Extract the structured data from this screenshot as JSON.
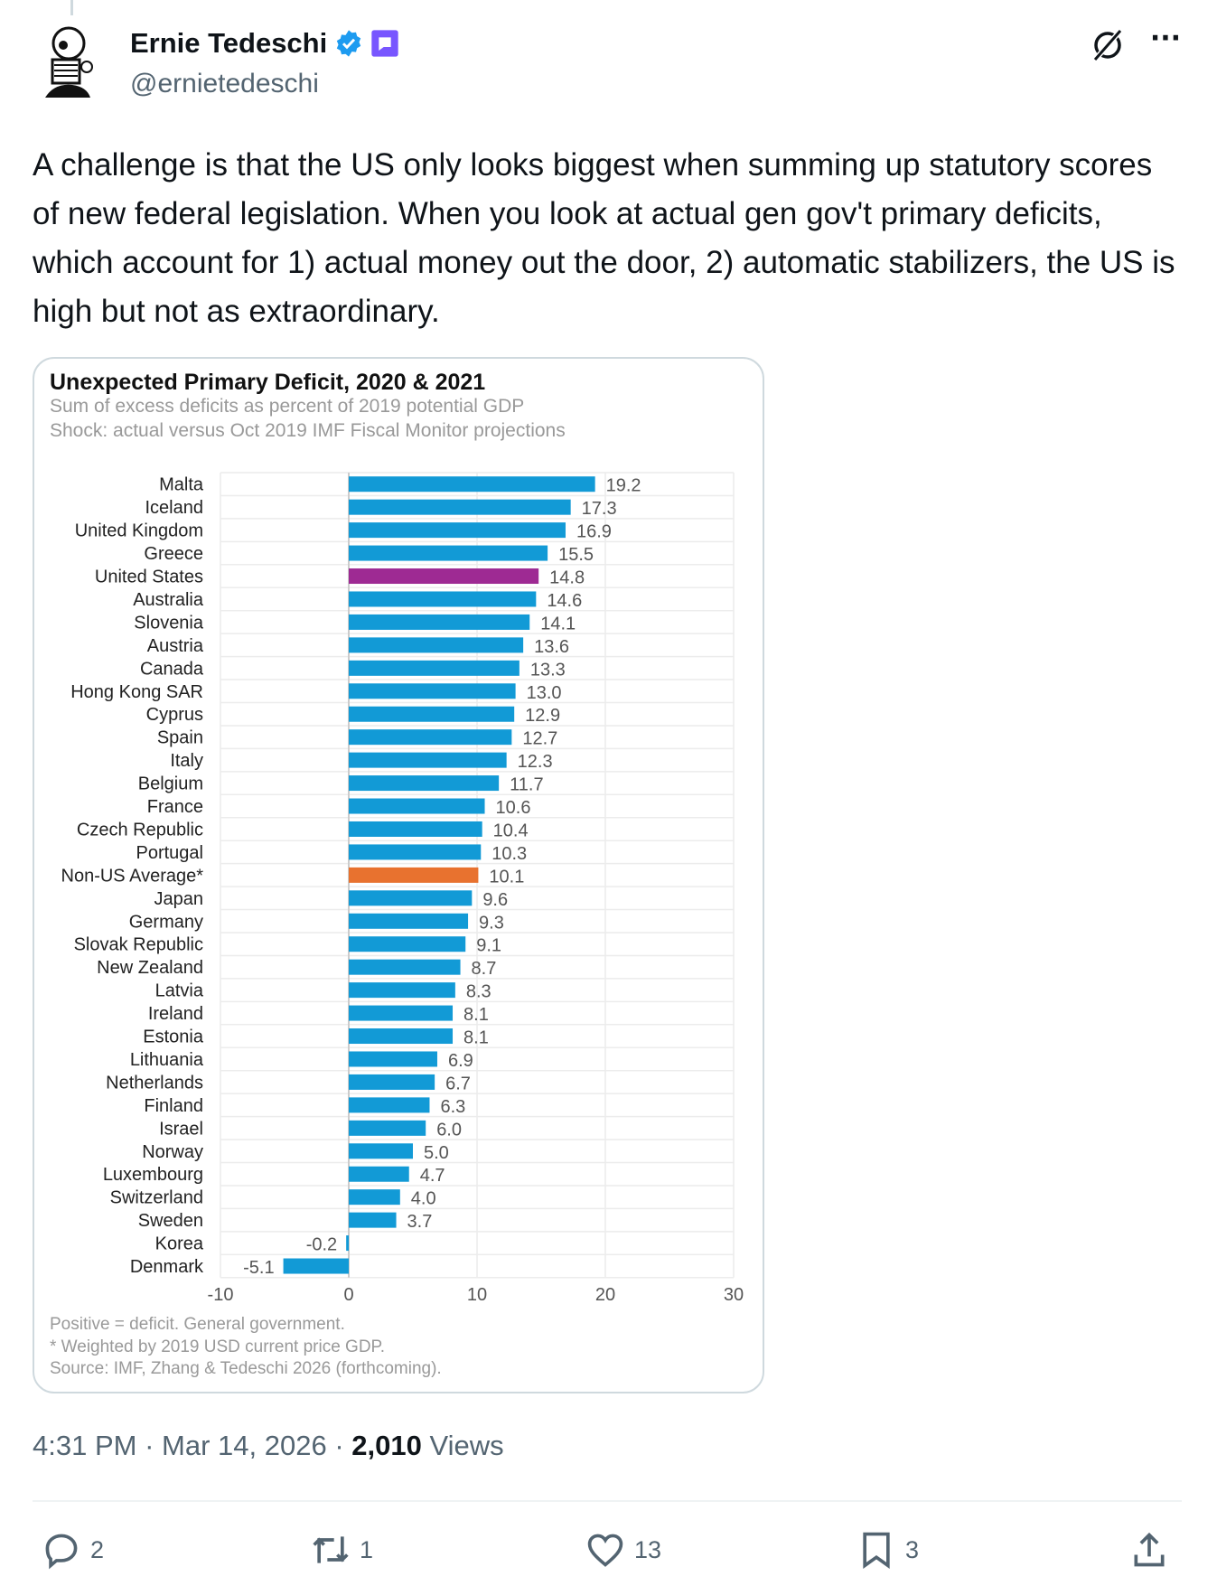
{
  "author": {
    "name": "Ernie Tedeschi",
    "handle": "@ernietedeschi"
  },
  "tweet_text": "A challenge is that the US only looks biggest when summing up statutory scores of new federal legislation. When you look at actual gen gov't primary deficits, which account for 1) actual money out the door, 2) automatic stabilizers, the US is high but not as extraordinary.",
  "meta": {
    "time": "4:31 PM",
    "date": "Mar 14, 2026",
    "views_count": "2,010",
    "views_label": "Views",
    "sep": "·"
  },
  "actions": {
    "replies": "2",
    "reposts": "1",
    "likes": "13",
    "bookmarks": "3"
  },
  "colors": {
    "bar": "#129ad6",
    "us": "#9e2a93",
    "average": "#e8722f",
    "verified": "#1d9bf0",
    "badge": "#7856ff"
  },
  "chart_data": {
    "type": "bar",
    "orientation": "horizontal",
    "title": "Unexpected Primary Deficit, 2020 & 2021",
    "subtitle1": "Sum of excess deficits as percent of 2019 potential GDP",
    "subtitle2": "Shock: actual versus Oct 2019 IMF Fiscal Monitor projections",
    "xlim": [
      -10,
      30
    ],
    "xticks": [
      "-10",
      "0",
      "10",
      "20",
      "30"
    ],
    "categories": [
      "Malta",
      "Iceland",
      "United Kingdom",
      "Greece",
      "United States",
      "Australia",
      "Slovenia",
      "Austria",
      "Canada",
      "Hong Kong SAR",
      "Cyprus",
      "Spain",
      "Italy",
      "Belgium",
      "France",
      "Czech Republic",
      "Portugal",
      "Non-US Average*",
      "Japan",
      "Germany",
      "Slovak Republic",
      "New Zealand",
      "Latvia",
      "Ireland",
      "Estonia",
      "Lithuania",
      "Netherlands",
      "Finland",
      "Israel",
      "Norway",
      "Luxembourg",
      "Switzerland",
      "Sweden",
      "Korea",
      "Denmark"
    ],
    "values": [
      19.2,
      17.3,
      16.9,
      15.5,
      14.8,
      14.6,
      14.1,
      13.6,
      13.3,
      13.0,
      12.9,
      12.7,
      12.3,
      11.7,
      10.6,
      10.4,
      10.3,
      10.1,
      9.6,
      9.3,
      9.1,
      8.7,
      8.3,
      8.1,
      8.1,
      6.9,
      6.7,
      6.3,
      6.0,
      5.0,
      4.7,
      4.0,
      3.7,
      -0.2,
      -5.1
    ],
    "notes": [
      "Positive = deficit. General government.",
      "* Weighted by 2019 USD current price GDP.",
      "Source: IMF, Zhang & Tedeschi 2026 (forthcoming)."
    ]
  }
}
